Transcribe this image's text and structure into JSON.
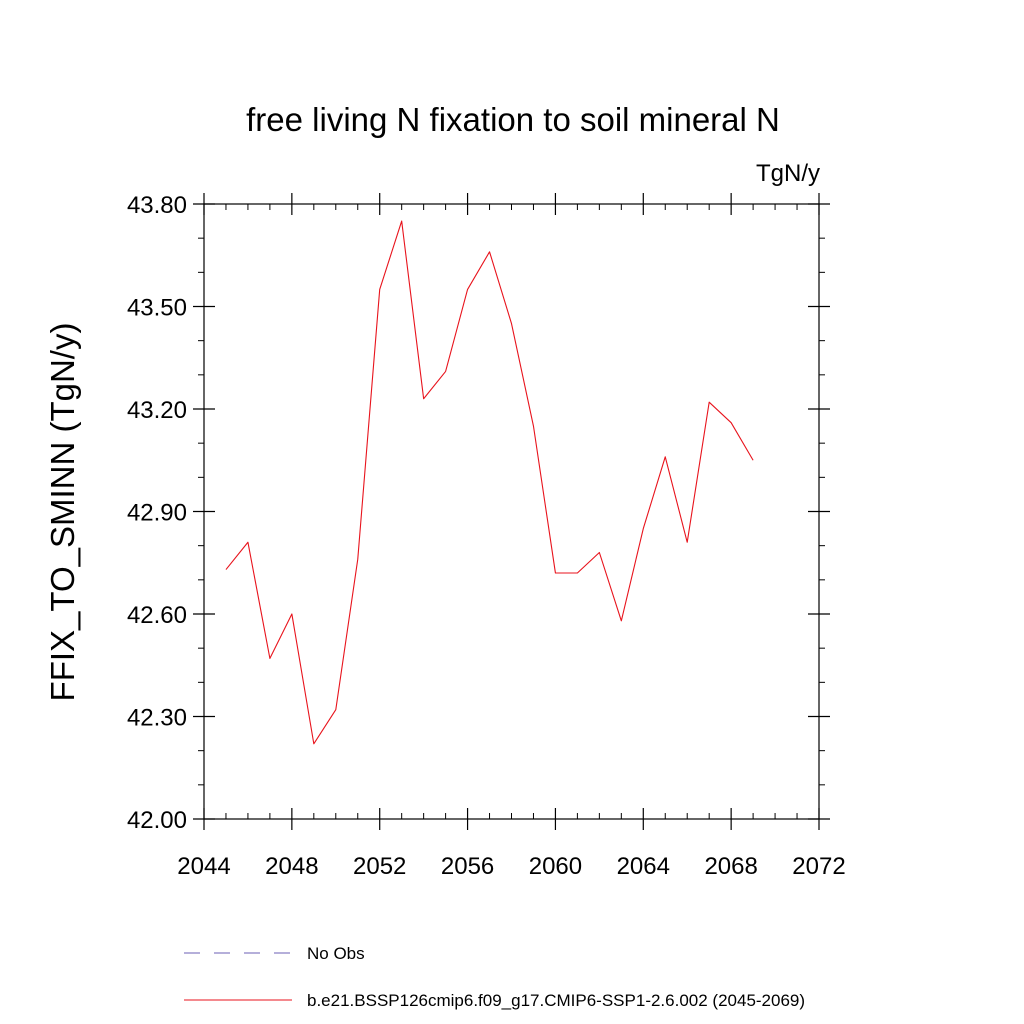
{
  "chart_data": {
    "type": "line",
    "title": "free living N fixation to soil mineral N",
    "units_label": "TgN/y",
    "xlabel": "",
    "ylabel": "FFIX_TO_SMINN  (TgN/y)",
    "xlim": [
      2044,
      2072
    ],
    "ylim": [
      42.0,
      43.8
    ],
    "x_ticks": [
      "2044",
      "2048",
      "2052",
      "2056",
      "2060",
      "2064",
      "2068",
      "2072"
    ],
    "y_ticks": [
      "42.00",
      "42.30",
      "42.60",
      "42.90",
      "43.20",
      "43.50",
      "43.80"
    ],
    "grid": false,
    "legend_position": "bottom",
    "series": [
      {
        "name": "b.e21.BSSP126cmip6.f09_g17.CMIP6-SSP1-2.6.002 (2045-2069)",
        "color": "#e8131c",
        "dash": "solid",
        "x": [
          2045,
          2046,
          2047,
          2048,
          2049,
          2050,
          2051,
          2052,
          2053,
          2054,
          2055,
          2056,
          2057,
          2058,
          2059,
          2060,
          2061,
          2062,
          2063,
          2064,
          2065,
          2066,
          2067,
          2068,
          2069
        ],
        "values": [
          42.73,
          42.81,
          42.47,
          42.6,
          42.22,
          42.32,
          42.76,
          43.55,
          43.75,
          43.23,
          43.31,
          43.55,
          43.66,
          43.45,
          43.15,
          42.72,
          42.72,
          42.78,
          42.58,
          42.85,
          43.06,
          42.81,
          43.22,
          43.16,
          43.05
        ]
      }
    ],
    "legend": [
      {
        "name": "No Obs",
        "color": "#6b5fb5",
        "dash": "dashed"
      },
      {
        "name": "b.e21.BSSP126cmip6.f09_g17.CMIP6-SSP1-2.6.002 (2045-2069)",
        "color": "#e8131c",
        "dash": "solid"
      }
    ]
  }
}
